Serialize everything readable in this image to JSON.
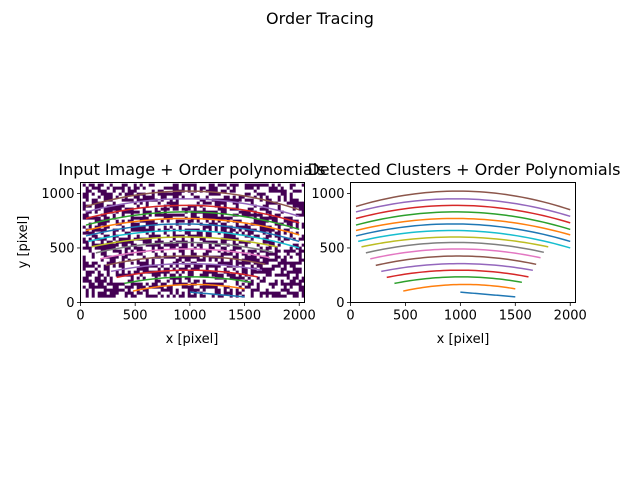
{
  "figure": {
    "suptitle": "Order Tracing"
  },
  "chart_data": [
    {
      "type": "line",
      "title": "Input Image + Order polynomials",
      "xlabel": "x [pixel]",
      "ylabel": "y [pixel]",
      "xlim": [
        0,
        2048
      ],
      "ylim": [
        0,
        1100
      ],
      "xticks": [
        0,
        500,
        1000,
        1500,
        2000
      ],
      "yticks": [
        0,
        500,
        1000
      ],
      "background": "noisy image: white background with dark purple (#440154) speckle pixels",
      "grid": false,
      "series": [
        {
          "color": "#1f77b4",
          "points": [
            [
              1000,
              95
            ],
            [
              1500,
              52
            ]
          ]
        },
        {
          "color": "#ff7f0e",
          "points": [
            [
              480,
              105
            ],
            [
              1000,
              165
            ],
            [
              1500,
              125
            ]
          ]
        },
        {
          "color": "#2ca02c",
          "points": [
            [
              400,
              175
            ],
            [
              1000,
              235
            ],
            [
              1560,
              185
            ]
          ]
        },
        {
          "color": "#d62728",
          "points": [
            [
              330,
              230
            ],
            [
              900,
              295
            ],
            [
              1620,
              235
            ]
          ]
        },
        {
          "color": "#9467bd",
          "points": [
            [
              280,
              285
            ],
            [
              900,
              355
            ],
            [
              1660,
              295
            ]
          ]
        },
        {
          "color": "#8c564b",
          "points": [
            [
              230,
              340
            ],
            [
              900,
              425
            ],
            [
              1690,
              350
            ]
          ]
        },
        {
          "color": "#e377c2",
          "points": [
            [
              180,
              400
            ],
            [
              900,
              490
            ],
            [
              1730,
              410
            ]
          ]
        },
        {
          "color": "#7f7f7f",
          "points": [
            [
              140,
              455
            ],
            [
              900,
              550
            ],
            [
              1760,
              460
            ]
          ]
        },
        {
          "color": "#bcbd22",
          "points": [
            [
              100,
              510
            ],
            [
              900,
              600
            ],
            [
              1800,
              510
            ]
          ]
        },
        {
          "color": "#17becf",
          "points": [
            [
              70,
              560
            ],
            [
              900,
              660
            ],
            [
              2000,
              500
            ]
          ]
        },
        {
          "color": "#1f77b4",
          "points": [
            [
              50,
              610
            ],
            [
              900,
              720
            ],
            [
              2000,
              560
            ]
          ]
        },
        {
          "color": "#ff7f0e",
          "points": [
            [
              50,
              660
            ],
            [
              900,
              770
            ],
            [
              2000,
              620
            ]
          ]
        },
        {
          "color": "#2ca02c",
          "points": [
            [
              50,
              710
            ],
            [
              900,
              830
            ],
            [
              2000,
              670
            ]
          ]
        },
        {
          "color": "#d62728",
          "points": [
            [
              50,
              770
            ],
            [
              900,
              890
            ],
            [
              2000,
              730
            ]
          ]
        },
        {
          "color": "#9467bd",
          "points": [
            [
              50,
              830
            ],
            [
              900,
              950
            ],
            [
              2000,
              790
            ]
          ]
        },
        {
          "color": "#8c564b",
          "points": [
            [
              50,
              880
            ],
            [
              900,
              1020
            ],
            [
              2000,
              850
            ]
          ]
        }
      ]
    },
    {
      "type": "line",
      "title": "Detected Clusters + Order Polynomials",
      "xlabel": "x [pixel]",
      "ylabel": "",
      "xlim": [
        0,
        2048
      ],
      "ylim": [
        0,
        1100
      ],
      "xticks": [
        0,
        500,
        1000,
        1500,
        2000
      ],
      "yticks": [
        0,
        500,
        1000
      ],
      "grid": false,
      "series": [
        {
          "color": "#1f77b4",
          "points": [
            [
              1000,
              95
            ],
            [
              1500,
              52
            ]
          ]
        },
        {
          "color": "#ff7f0e",
          "points": [
            [
              480,
              105
            ],
            [
              1000,
              165
            ],
            [
              1500,
              125
            ]
          ]
        },
        {
          "color": "#2ca02c",
          "points": [
            [
              400,
              175
            ],
            [
              1000,
              235
            ],
            [
              1560,
              185
            ]
          ]
        },
        {
          "color": "#d62728",
          "points": [
            [
              330,
              230
            ],
            [
              900,
              295
            ],
            [
              1620,
              235
            ]
          ]
        },
        {
          "color": "#9467bd",
          "points": [
            [
              280,
              285
            ],
            [
              900,
              355
            ],
            [
              1660,
              295
            ]
          ]
        },
        {
          "color": "#8c564b",
          "points": [
            [
              230,
              340
            ],
            [
              900,
              425
            ],
            [
              1690,
              350
            ]
          ]
        },
        {
          "color": "#e377c2",
          "points": [
            [
              180,
              400
            ],
            [
              900,
              490
            ],
            [
              1730,
              410
            ]
          ]
        },
        {
          "color": "#7f7f7f",
          "points": [
            [
              140,
              455
            ],
            [
              900,
              550
            ],
            [
              1760,
              460
            ]
          ]
        },
        {
          "color": "#bcbd22",
          "points": [
            [
              100,
              510
            ],
            [
              900,
              600
            ],
            [
              1800,
              510
            ]
          ]
        },
        {
          "color": "#17becf",
          "points": [
            [
              70,
              560
            ],
            [
              900,
              660
            ],
            [
              2000,
              500
            ]
          ]
        },
        {
          "color": "#1f77b4",
          "points": [
            [
              50,
              610
            ],
            [
              900,
              720
            ],
            [
              2000,
              560
            ]
          ]
        },
        {
          "color": "#ff7f0e",
          "points": [
            [
              50,
              660
            ],
            [
              900,
              770
            ],
            [
              2000,
              620
            ]
          ]
        },
        {
          "color": "#2ca02c",
          "points": [
            [
              50,
              710
            ],
            [
              900,
              830
            ],
            [
              2000,
              670
            ]
          ]
        },
        {
          "color": "#d62728",
          "points": [
            [
              50,
              770
            ],
            [
              900,
              890
            ],
            [
              2000,
              730
            ]
          ]
        },
        {
          "color": "#9467bd",
          "points": [
            [
              50,
              830
            ],
            [
              900,
              950
            ],
            [
              2000,
              790
            ]
          ]
        },
        {
          "color": "#8c564b",
          "points": [
            [
              50,
              880
            ],
            [
              900,
              1020
            ],
            [
              2000,
              850
            ]
          ]
        }
      ]
    }
  ]
}
